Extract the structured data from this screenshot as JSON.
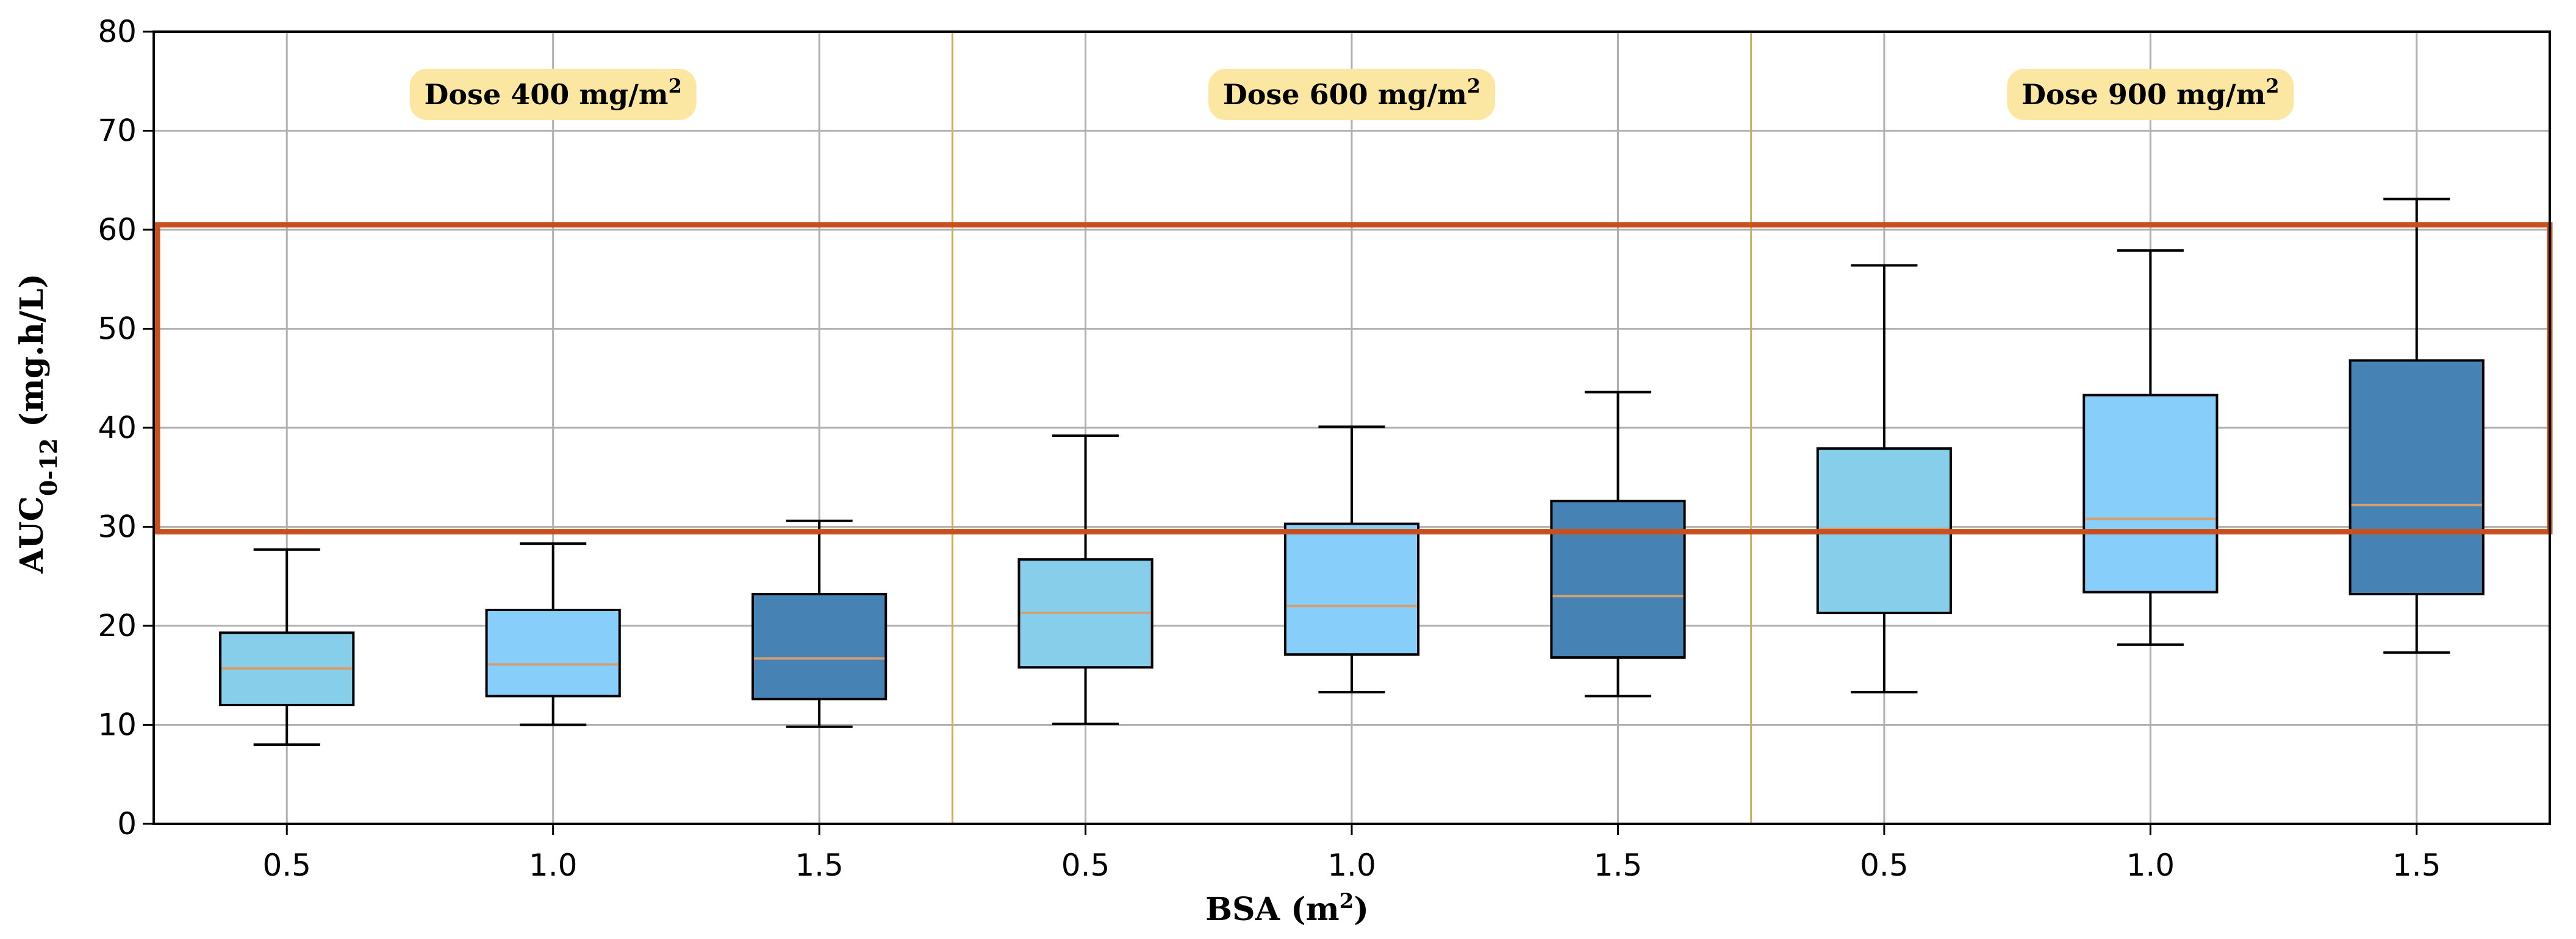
{
  "chart_data": {
    "type": "box",
    "xlabel": "BSA (m",
    "xlabel_sup": "2",
    "xlabel_close": ")",
    "ylabel_main": "AUC",
    "ylabel_sub": "0-12",
    "ylabel_units": " (mg.h/L)",
    "ylim": [
      0,
      80
    ],
    "yticks": [
      0,
      10,
      20,
      30,
      40,
      50,
      60,
      70,
      80
    ],
    "grid": true,
    "groups": [
      {
        "label": "Dose 400 mg/m",
        "label_sup": "2",
        "boxes": [
          {
            "bsa": "0.5",
            "whisker_low": 8.0,
            "q1": 12.0,
            "median": 15.7,
            "q3": 19.3,
            "whisker_high": 27.7,
            "color": "#87ceeb"
          },
          {
            "bsa": "1.0",
            "whisker_low": 10.0,
            "q1": 12.9,
            "median": 16.1,
            "q3": 21.6,
            "whisker_high": 28.3,
            "color": "#87cefa"
          },
          {
            "bsa": "1.5",
            "whisker_low": 9.8,
            "q1": 12.6,
            "median": 16.7,
            "q3": 23.2,
            "whisker_high": 30.6,
            "color": "#4682b4"
          }
        ]
      },
      {
        "label": "Dose 600 mg/m",
        "label_sup": "2",
        "boxes": [
          {
            "bsa": "0.5",
            "whisker_low": 10.1,
            "q1": 15.8,
            "median": 21.3,
            "q3": 26.7,
            "whisker_high": 39.2,
            "color": "#87ceeb"
          },
          {
            "bsa": "1.0",
            "whisker_low": 13.3,
            "q1": 17.1,
            "median": 22.0,
            "q3": 30.3,
            "whisker_high": 40.1,
            "color": "#87cefa"
          },
          {
            "bsa": "1.5",
            "whisker_low": 12.9,
            "q1": 16.8,
            "median": 23.0,
            "q3": 32.6,
            "whisker_high": 43.6,
            "color": "#4682b4"
          }
        ]
      },
      {
        "label": "Dose 900 mg/m",
        "label_sup": "2",
        "boxes": [
          {
            "bsa": "0.5",
            "whisker_low": 13.3,
            "q1": 21.3,
            "median": 29.8,
            "q3": 37.9,
            "whisker_high": 56.4,
            "color": "#87ceeb"
          },
          {
            "bsa": "1.0",
            "whisker_low": 18.1,
            "q1": 23.4,
            "median": 30.8,
            "q3": 43.3,
            "whisker_high": 57.9,
            "color": "#87cefa"
          },
          {
            "bsa": "1.5",
            "whisker_low": 17.3,
            "q1": 23.2,
            "median": 32.2,
            "q3": 46.8,
            "whisker_high": 63.1,
            "color": "#4682b4"
          }
        ]
      }
    ],
    "highlight_range": [
      29.5,
      60.5
    ],
    "colors": {
      "highlight_rect": "#c8501e",
      "dose_label_bg": "#fbe7a1",
      "group_divider": "#c9b15a",
      "median_line": "#d4a070",
      "grid": "#b0b0b0"
    }
  }
}
